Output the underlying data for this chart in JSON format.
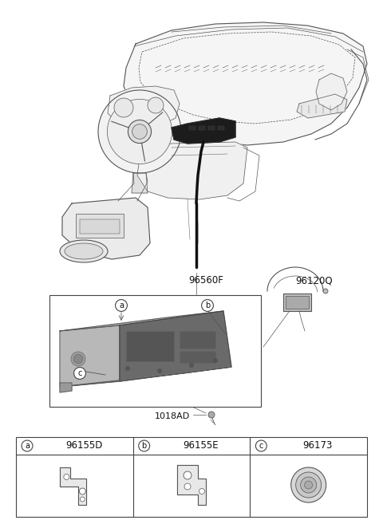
{
  "bg_color": "#ffffff",
  "label_96560F": "96560F",
  "label_96120Q": "96120Q",
  "label_1018AD": "1018AD",
  "label_a": "a",
  "label_b": "b",
  "label_c": "c",
  "part_a_code": "96155D",
  "part_b_code": "96155E",
  "part_c_code": "96173",
  "border_color": "#444444",
  "text_color": "#111111",
  "line_color": "#555555",
  "thin_line": 0.5,
  "med_line": 0.8,
  "thick_line": 1.2
}
